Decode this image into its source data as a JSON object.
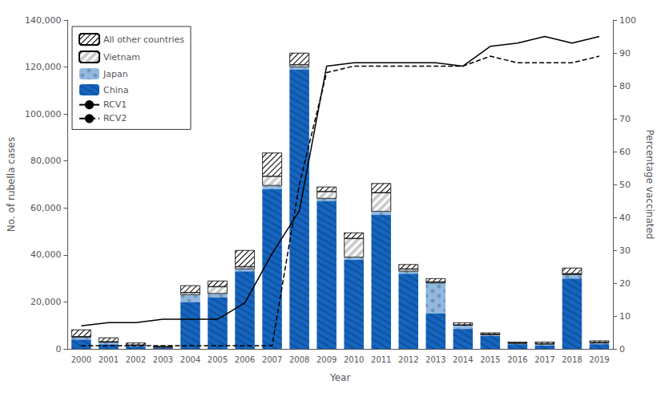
{
  "chart_data": {
    "type": "bar",
    "stacked": true,
    "xlabel": "Year",
    "ylabel": "No. of rubella cases",
    "y2label": "Percentage vaccinated",
    "categories": [
      "2000",
      "2001",
      "2002",
      "2003",
      "2004",
      "2005",
      "2006",
      "2007",
      "2008",
      "2009",
      "2010",
      "2011",
      "2012",
      "2013",
      "2014",
      "2015",
      "2016",
      "2017",
      "2018",
      "2019"
    ],
    "ylim": [
      0,
      140000
    ],
    "yticks": [
      0,
      {
        "value": 20000,
        "label": "20,000"
      },
      {
        "value": 40000,
        "label": "40,000"
      },
      {
        "value": 60000,
        "label": "60,000"
      },
      {
        "value": 80000,
        "label": "80,000"
      },
      {
        "value": 100000,
        "label": "100,000"
      },
      {
        "value": 120000,
        "label": "120,000"
      },
      {
        "value": 140000,
        "label": "140,000"
      }
    ],
    "y2lim": [
      0,
      100
    ],
    "y2ticks": [
      0,
      10,
      20,
      30,
      40,
      50,
      60,
      70,
      80,
      90,
      100
    ],
    "grid": false,
    "legend": "upper left",
    "series": [
      {
        "name": "China",
        "color": "#1565c0",
        "values": [
          4000,
          2000,
          1000,
          500,
          20000,
          22000,
          33000,
          68000,
          119000,
          63000,
          38000,
          57000,
          32000,
          15000,
          8500,
          5500,
          2000,
          1500,
          30000,
          2000
        ]
      },
      {
        "name": "Japan",
        "color": "#90b8e0",
        "values": [
          1000,
          800,
          500,
          200,
          3000,
          1500,
          1000,
          1500,
          1000,
          1000,
          1000,
          1500,
          1000,
          13000,
          1500,
          500,
          300,
          500,
          1500,
          500
        ]
      },
      {
        "name": "Vietnam",
        "color": "#ffffff",
        "values": [
          200,
          200,
          100,
          100,
          1000,
          3000,
          1000,
          4000,
          1000,
          3000,
          8000,
          8000,
          1000,
          500,
          200,
          200,
          200,
          200,
          500,
          200
        ]
      },
      {
        "name": "All other countries",
        "color": "#ffffff",
        "values": [
          3000,
          1800,
          1000,
          400,
          3000,
          2500,
          7000,
          10000,
          5000,
          2000,
          2500,
          4000,
          2000,
          1500,
          1000,
          700,
          500,
          800,
          2500,
          800
        ]
      },
      {
        "name": "RCV1",
        "type": "line",
        "axis": "y2",
        "color": "#000000",
        "line_style": "solid",
        "values": [
          7,
          8,
          8,
          9,
          9,
          9,
          14,
          29,
          42,
          86,
          87,
          87,
          87,
          87,
          86,
          92,
          93,
          95,
          93,
          95
        ]
      },
      {
        "name": "RCV2",
        "type": "line",
        "axis": "y2",
        "color": "#000000",
        "line_style": "dashed",
        "values": [
          1,
          1,
          1,
          1,
          1,
          1,
          1,
          1,
          50,
          84,
          86,
          86,
          86,
          86,
          86,
          89,
          87,
          87,
          87,
          89
        ]
      }
    ]
  }
}
